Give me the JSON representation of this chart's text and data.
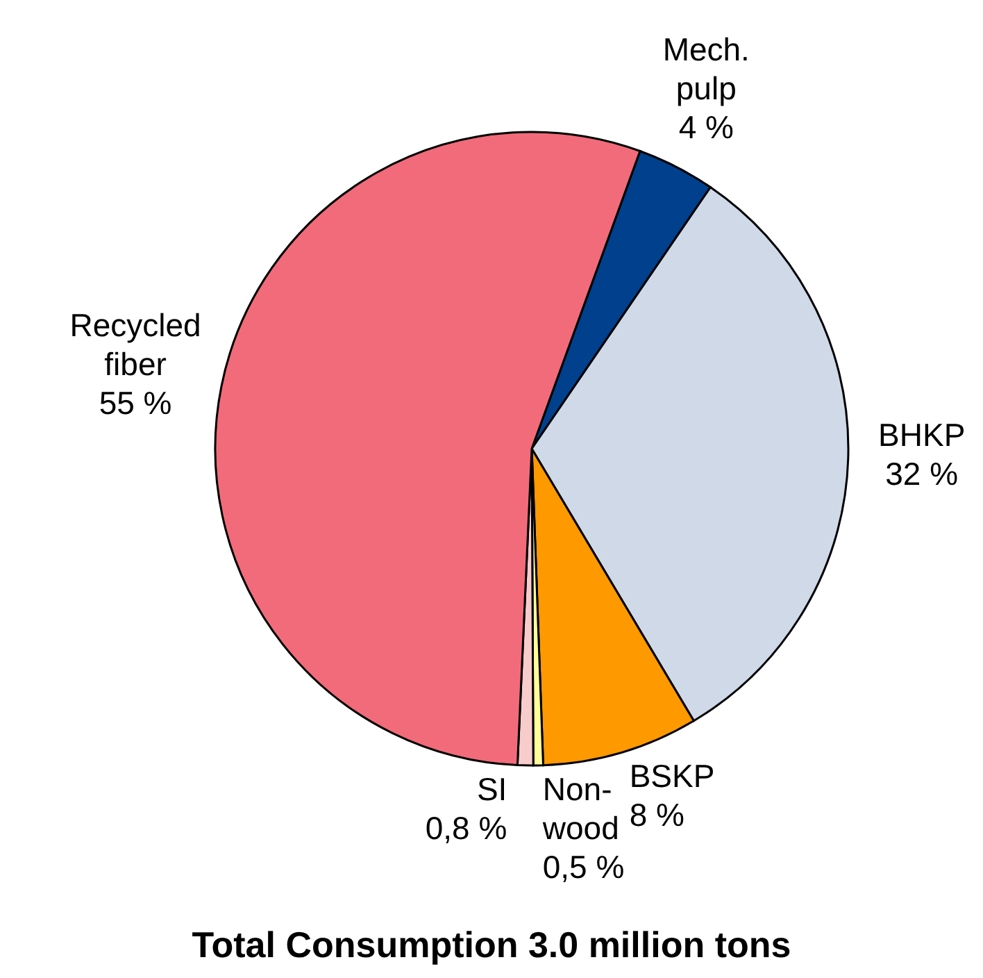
{
  "chart_data": {
    "type": "pie",
    "title": "Total Consumption 3.0 million tons",
    "categories": [
      "Mech. pulp",
      "BHKP",
      "BSKP",
      "Non-wood",
      "SI",
      "Recycled fiber"
    ],
    "values": [
      4,
      32,
      8,
      0.5,
      0.8,
      55
    ],
    "value_labels": [
      "4 %",
      "32 %",
      "8 %",
      "0,5 %",
      "0,8 %",
      "55 %"
    ],
    "colors": [
      "#00408c",
      "#cfd9e8",
      "#ff9900",
      "#ffff99",
      "#f9cccc",
      "#f26b7a"
    ],
    "legend": false
  }
}
